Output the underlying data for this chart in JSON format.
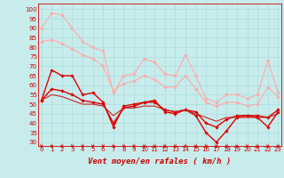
{
  "xlabel": "Vent moyen/en rafales ( km/h )",
  "bg_color": "#c8ecec",
  "grid_color": "#aadddd",
  "x": [
    0,
    1,
    2,
    3,
    4,
    5,
    6,
    7,
    8,
    9,
    10,
    11,
    12,
    13,
    14,
    15,
    16,
    17,
    18,
    19,
    20,
    21,
    22,
    23
  ],
  "lines": [
    {
      "y": [
        90,
        98,
        97,
        90,
        83,
        80,
        78,
        56,
        65,
        66,
        74,
        72,
        66,
        65,
        76,
        65,
        53,
        51,
        55,
        55,
        53,
        55,
        73,
        56
      ],
      "color": "#ffaaaa",
      "linewidth": 0.8,
      "marker": "D",
      "markersize": 1.8
    },
    {
      "y": [
        83,
        84,
        82,
        79,
        76,
        74,
        70,
        57,
        61,
        62,
        65,
        63,
        59,
        59,
        65,
        58,
        51,
        49,
        51,
        51,
        49,
        50,
        59,
        54
      ],
      "color": "#ffaaaa",
      "linewidth": 0.8,
      "marker": "D",
      "markersize": 1.8
    },
    {
      "y": [
        52,
        68,
        65,
        65,
        55,
        56,
        51,
        38,
        49,
        50,
        51,
        52,
        46,
        45,
        47,
        44,
        35,
        30,
        36,
        43,
        44,
        43,
        38,
        46
      ],
      "color": "#dd0000",
      "linewidth": 1.0,
      "marker": "D",
      "markersize": 1.8
    },
    {
      "y": [
        52,
        58,
        57,
        55,
        52,
        51,
        50,
        40,
        48,
        49,
        51,
        51,
        47,
        46,
        47,
        46,
        40,
        38,
        42,
        44,
        44,
        44,
        43,
        47
      ],
      "color": "#dd0000",
      "linewidth": 1.0,
      "marker": "D",
      "markersize": 1.8
    },
    {
      "y": [
        52,
        55,
        54,
        52,
        50,
        50,
        49,
        44,
        48,
        48,
        49,
        49,
        47,
        46,
        47,
        45,
        43,
        41,
        43,
        43,
        43,
        43,
        43,
        45
      ],
      "color": "#cc2222",
      "linewidth": 0.8,
      "marker": null,
      "markersize": 0
    }
  ],
  "ylim": [
    28,
    103
  ],
  "xlim": [
    -0.3,
    23.3
  ],
  "yticks": [
    30,
    35,
    40,
    45,
    50,
    55,
    60,
    65,
    70,
    75,
    80,
    85,
    90,
    95,
    100
  ],
  "xticks": [
    0,
    1,
    2,
    3,
    4,
    5,
    6,
    7,
    8,
    9,
    10,
    11,
    12,
    13,
    14,
    15,
    16,
    17,
    18,
    19,
    20,
    21,
    22,
    23
  ],
  "label_color": "#cc0000",
  "tick_fontsize": 5.0,
  "xlabel_fontsize": 6.5
}
